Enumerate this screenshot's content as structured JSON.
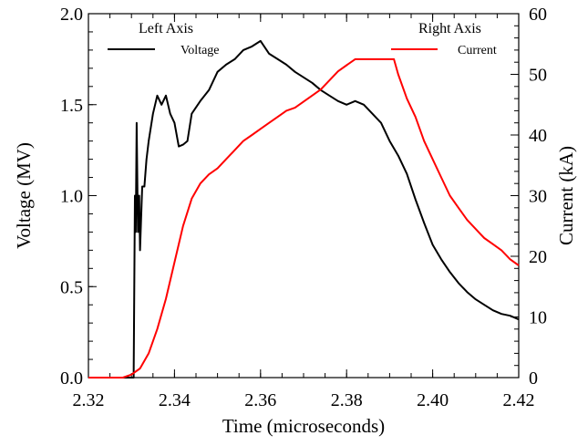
{
  "chart_data": {
    "type": "line",
    "title": "",
    "xlabel": "Time (microseconds)",
    "ylabel_left": "Voltage (MV)",
    "ylabel_right": "Current (kA)",
    "xlim": [
      2.32,
      2.42
    ],
    "ylim_left": [
      0.0,
      2.0
    ],
    "ylim_right": [
      0,
      60
    ],
    "x_ticks": [
      2.32,
      2.34,
      2.36,
      2.38,
      2.4,
      2.42
    ],
    "x_tick_labels": [
      "2.32",
      "2.34",
      "2.36",
      "2.38",
      "2.40",
      "2.42"
    ],
    "y_left_ticks": [
      0.0,
      0.5,
      1.0,
      1.5,
      2.0
    ],
    "y_left_tick_labels": [
      "0.0",
      "0.5",
      "1.0",
      "1.5",
      "2.0"
    ],
    "y_right_ticks": [
      0,
      10,
      20,
      30,
      40,
      50,
      60
    ],
    "y_right_tick_labels": [
      "0",
      "10",
      "20",
      "30",
      "40",
      "50",
      "60"
    ],
    "grid": false,
    "legend": {
      "left_heading": "Left Axis",
      "right_heading": "Right Axis",
      "placement": "top"
    },
    "series": [
      {
        "name": "Voltage",
        "axis": "left",
        "color": "#000000",
        "x": [
          2.32,
          2.33,
          2.3305,
          2.3308,
          2.331,
          2.3312,
          2.3315,
          2.3318,
          2.332,
          2.3325,
          2.333,
          2.3335,
          2.334,
          2.335,
          2.336,
          2.337,
          2.338,
          2.339,
          2.34,
          2.341,
          2.342,
          2.343,
          2.344,
          2.346,
          2.348,
          2.35,
          2.352,
          2.354,
          2.356,
          2.358,
          2.36,
          2.362,
          2.364,
          2.366,
          2.368,
          2.37,
          2.372,
          2.374,
          2.376,
          2.378,
          2.38,
          2.382,
          2.384,
          2.386,
          2.388,
          2.39,
          2.392,
          2.394,
          2.396,
          2.398,
          2.4,
          2.402,
          2.404,
          2.406,
          2.408,
          2.41,
          2.412,
          2.414,
          2.416,
          2.418,
          2.42
        ],
        "y": [
          0.0,
          0.0,
          0.0,
          1.0,
          0.8,
          1.4,
          0.8,
          1.0,
          0.7,
          1.05,
          1.05,
          1.2,
          1.3,
          1.45,
          1.55,
          1.5,
          1.55,
          1.45,
          1.4,
          1.27,
          1.28,
          1.3,
          1.45,
          1.52,
          1.58,
          1.68,
          1.72,
          1.75,
          1.8,
          1.82,
          1.85,
          1.78,
          1.75,
          1.72,
          1.68,
          1.65,
          1.62,
          1.58,
          1.55,
          1.52,
          1.5,
          1.52,
          1.5,
          1.45,
          1.4,
          1.3,
          1.22,
          1.12,
          0.98,
          0.85,
          0.73,
          0.65,
          0.58,
          0.52,
          0.47,
          0.43,
          0.4,
          0.37,
          0.35,
          0.34,
          0.32
        ]
      },
      {
        "name": "Current",
        "axis": "right",
        "color": "#ff0000",
        "x": [
          2.32,
          2.328,
          2.33,
          2.332,
          2.334,
          2.336,
          2.338,
          2.34,
          2.342,
          2.344,
          2.346,
          2.348,
          2.35,
          2.352,
          2.354,
          2.356,
          2.358,
          2.36,
          2.362,
          2.364,
          2.366,
          2.368,
          2.37,
          2.372,
          2.374,
          2.376,
          2.378,
          2.38,
          2.382,
          2.384,
          2.386,
          2.388,
          2.39,
          2.391,
          2.392,
          2.394,
          2.396,
          2.398,
          2.4,
          2.402,
          2.404,
          2.406,
          2.408,
          2.41,
          2.412,
          2.414,
          2.416,
          2.418,
          2.42
        ],
        "y": [
          0,
          0,
          0.5,
          1.5,
          4,
          8,
          13,
          19,
          25,
          29.5,
          32,
          33.5,
          34.5,
          36,
          37.5,
          39,
          40,
          41,
          42,
          43,
          44,
          44.5,
          45.5,
          46.5,
          47.5,
          49,
          50.5,
          51.5,
          52.5,
          52.5,
          52.5,
          52.5,
          52.5,
          52.5,
          50,
          46,
          43,
          39,
          36,
          33,
          30,
          28,
          26,
          24.5,
          23,
          22,
          21,
          19.5,
          18.5
        ]
      }
    ]
  }
}
